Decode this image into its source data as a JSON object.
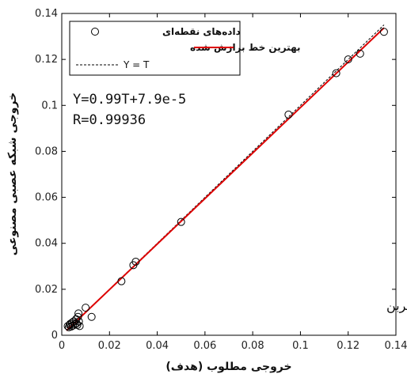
{
  "chart_data": {
    "type": "scatter",
    "xlabel": "خروجی مطلوب (هدف)",
    "ylabel": "خروجی شبکه عصبی مصنوعی",
    "xlim": [
      0,
      0.14
    ],
    "ylim": [
      0,
      0.14
    ],
    "x_ticks": [
      "0",
      "0.02",
      "0.04",
      "0.06",
      "0.08",
      "0.1",
      "0.12",
      "0.14"
    ],
    "y_ticks": [
      "0",
      "0.02",
      "0.04",
      "0.06",
      "0.08",
      "0.1",
      "0.12",
      "0.14"
    ],
    "grid": false,
    "legend_position": "top-left",
    "legend": [
      {
        "label": "داده‌های نقطه‌ای",
        "marker": "circle"
      },
      {
        "label": "بهترین خط برازش شده",
        "style": "solid-red"
      },
      {
        "label": "Y = T",
        "style": "dashed-black"
      }
    ],
    "annotations": [
      "Y=0.99T+7.9e-5",
      "R=0.99936"
    ],
    "note": "انتشار منوکسیدکربن",
    "fit_line": {
      "slope": 0.99,
      "intercept": 7.9e-05,
      "color": "#dd0000"
    },
    "identity_line": {
      "slope": 1,
      "intercept": 0,
      "color": "#000000"
    },
    "series": [
      {
        "name": "داده‌های نقطه‌ای",
        "points": [
          [
            0.0025,
            0.004
          ],
          [
            0.003,
            0.0035
          ],
          [
            0.0033,
            0.0045
          ],
          [
            0.0036,
            0.005
          ],
          [
            0.004,
            0.0038
          ],
          [
            0.0043,
            0.0055
          ],
          [
            0.0046,
            0.0042
          ],
          [
            0.005,
            0.006
          ],
          [
            0.0055,
            0.0048
          ],
          [
            0.006,
            0.007
          ],
          [
            0.0062,
            0.0052
          ],
          [
            0.0065,
            0.0045
          ],
          [
            0.0068,
            0.008
          ],
          [
            0.007,
            0.0095
          ],
          [
            0.0072,
            0.006
          ],
          [
            0.0075,
            0.004
          ],
          [
            0.01,
            0.012
          ],
          [
            0.0125,
            0.008
          ],
          [
            0.025,
            0.0235
          ],
          [
            0.03,
            0.0305
          ],
          [
            0.031,
            0.032
          ],
          [
            0.05,
            0.0493
          ],
          [
            0.095,
            0.096
          ],
          [
            0.115,
            0.114
          ],
          [
            0.12,
            0.12
          ],
          [
            0.125,
            0.1225
          ],
          [
            0.135,
            0.132
          ]
        ]
      }
    ]
  }
}
